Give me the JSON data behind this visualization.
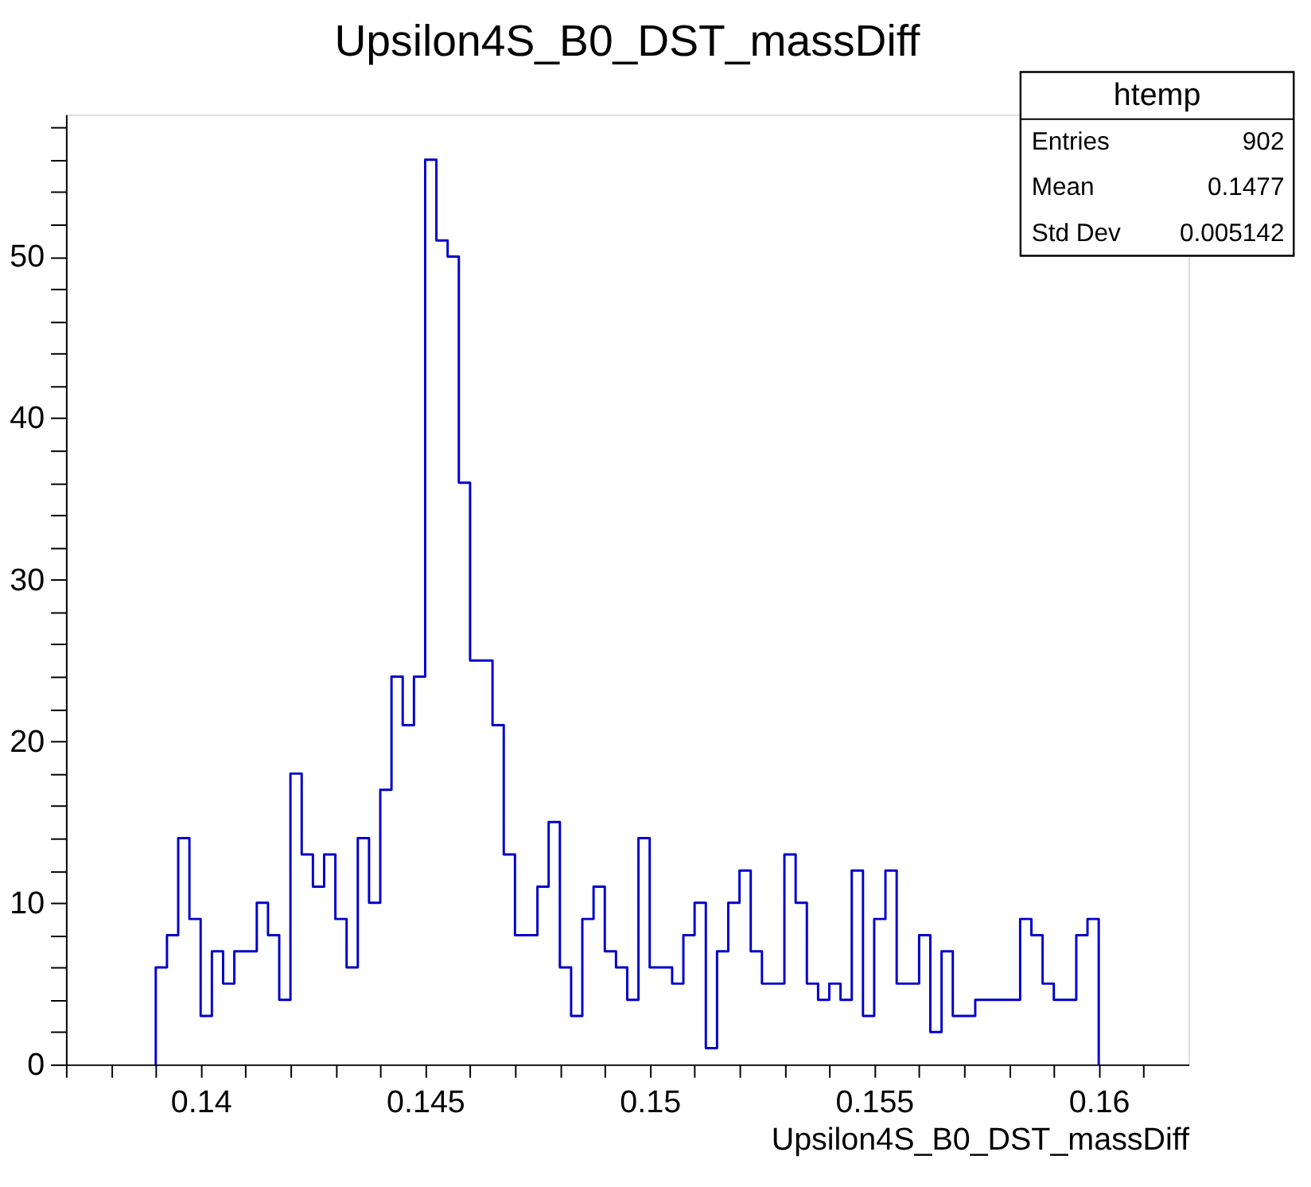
{
  "chart_data": {
    "type": "histogram",
    "title": "Upsilon4S_B0_DST_massDiff",
    "xlabel": "Upsilon4S_B0_DST_massDiff",
    "bins": [
      0.139,
      0.13925,
      0.1395,
      0.13975,
      0.14,
      0.14025,
      0.1405,
      0.14075,
      0.141,
      0.14125,
      0.1415,
      0.14175,
      0.142,
      0.14225,
      0.1425,
      0.14275,
      0.143,
      0.14325,
      0.1435,
      0.14375,
      0.144,
      0.14425,
      0.1445,
      0.14475,
      0.145,
      0.14525,
      0.1455,
      0.14575,
      0.146,
      0.14625,
      0.1465,
      0.14675,
      0.147,
      0.14725,
      0.1475,
      0.14775,
      0.148,
      0.14825,
      0.1485,
      0.14875,
      0.149,
      0.14925,
      0.1495,
      0.14975,
      0.15,
      0.15025,
      0.1505,
      0.15075,
      0.151,
      0.15125,
      0.1515,
      0.15175,
      0.152,
      0.15225,
      0.1525,
      0.15275,
      0.153,
      0.15325,
      0.1535,
      0.15375,
      0.154,
      0.15425,
      0.1545,
      0.15475,
      0.155,
      0.15525,
      0.1555,
      0.15575,
      0.156,
      0.15625,
      0.1565,
      0.15675,
      0.157,
      0.15725,
      0.1575,
      0.15775,
      0.158,
      0.15825,
      0.1585,
      0.15875,
      0.159,
      0.15925,
      0.1595,
      0.15975,
      0.16
    ],
    "values": [
      6,
      8,
      14,
      9,
      3,
      7,
      5,
      7,
      7,
      10,
      8,
      4,
      18,
      13,
      11,
      13,
      9,
      6,
      14,
      10,
      17,
      24,
      21,
      24,
      56,
      51,
      50,
      36,
      25,
      25,
      21,
      13,
      8,
      8,
      11,
      15,
      6,
      3,
      9,
      11,
      7,
      6,
      4,
      14,
      6,
      6,
      5,
      8,
      10,
      1,
      7,
      10,
      12,
      7,
      5,
      5,
      13,
      10,
      5,
      4,
      5,
      4,
      12,
      3,
      9,
      12,
      5,
      5,
      8,
      2,
      7,
      3,
      3,
      4,
      4,
      4,
      4,
      9,
      8,
      5,
      4,
      4,
      8,
      9
    ],
    "color": "#0000cc",
    "xlim": [
      0.137,
      0.162
    ],
    "xticks": [
      {
        "value": 0.137,
        "label": null
      },
      {
        "value": 0.138,
        "label": null
      },
      {
        "value": 0.139,
        "label": null
      },
      0.14,
      {
        "value": 0.141,
        "label": null
      },
      {
        "value": 0.142,
        "label": null
      },
      {
        "value": 0.143,
        "label": null
      },
      {
        "value": 0.144,
        "label": null
      },
      0.145,
      {
        "value": 0.146,
        "label": null
      },
      {
        "value": 0.147,
        "label": null
      },
      {
        "value": 0.148,
        "label": null
      },
      {
        "value": 0.149,
        "label": null
      },
      0.15,
      {
        "value": 0.151,
        "label": null
      },
      {
        "value": 0.152,
        "label": null
      },
      {
        "value": 0.153,
        "label": null
      },
      {
        "value": 0.154,
        "label": null
      },
      0.155,
      {
        "value": 0.156,
        "label": null
      },
      {
        "value": 0.157,
        "label": null
      },
      {
        "value": 0.158,
        "label": null
      },
      {
        "value": 0.159,
        "label": null
      },
      0.16,
      {
        "value": 0.161,
        "label": null
      }
    ],
    "ylim": [
      0,
      58.8
    ],
    "yticks": [
      0,
      {
        "value": 2,
        "label": null
      },
      {
        "value": 4,
        "label": null
      },
      {
        "value": 6,
        "label": null
      },
      {
        "value": 8,
        "label": null
      },
      10,
      {
        "value": 12,
        "label": null
      },
      {
        "value": 14,
        "label": null
      },
      {
        "value": 16,
        "label": null
      },
      {
        "value": 18,
        "label": null
      },
      20,
      {
        "value": 22,
        "label": null
      },
      {
        "value": 24,
        "label": null
      },
      {
        "value": 26,
        "label": null
      },
      {
        "value": 28,
        "label": null
      },
      30,
      {
        "value": 32,
        "label": null
      },
      {
        "value": 34,
        "label": null
      },
      {
        "value": 36,
        "label": null
      },
      {
        "value": 38,
        "label": null
      },
      40,
      {
        "value": 42,
        "label": null
      },
      {
        "value": 44,
        "label": null
      },
      {
        "value": 46,
        "label": null
      },
      {
        "value": 48,
        "label": null
      },
      50,
      {
        "value": 52,
        "label": null
      },
      {
        "value": 54,
        "label": null
      },
      {
        "value": 56,
        "label": null
      },
      {
        "value": 58,
        "label": null
      }
    ],
    "grid": false,
    "legend": false,
    "annotations": [
      "htemp",
      "Entries",
      "902",
      "Mean",
      "0.1477",
      "Std Dev",
      "0.005142"
    ]
  }
}
